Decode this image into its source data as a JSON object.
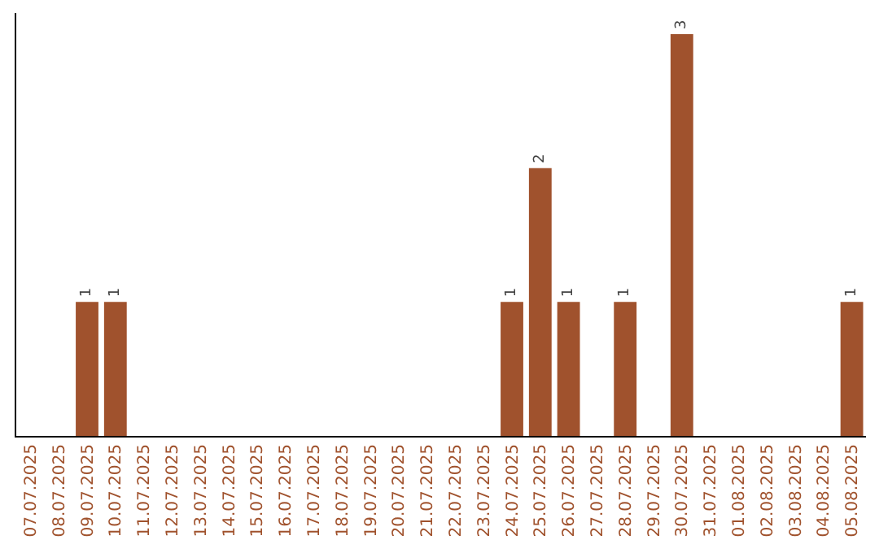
{
  "chart_data": {
    "type": "bar",
    "categories": [
      "07.07.2025",
      "08.07.2025",
      "09.07.2025",
      "10.07.2025",
      "11.07.2025",
      "12.07.2025",
      "13.07.2025",
      "14.07.2025",
      "15.07.2025",
      "16.07.2025",
      "17.07.2025",
      "18.07.2025",
      "19.07.2025",
      "20.07.2025",
      "21.07.2025",
      "22.07.2025",
      "23.07.2025",
      "24.07.2025",
      "25.07.2025",
      "26.07.2025",
      "27.07.2025",
      "28.07.2025",
      "29.07.2025",
      "30.07.2025",
      "31.07.2025",
      "01.08.2025",
      "02.08.2025",
      "03.08.2025",
      "04.08.2025",
      "05.08.2025"
    ],
    "values": [
      0,
      0,
      1,
      1,
      0,
      0,
      0,
      0,
      0,
      0,
      0,
      0,
      0,
      0,
      0,
      0,
      0,
      1,
      2,
      1,
      0,
      1,
      0,
      3,
      0,
      0,
      0,
      0,
      0,
      1
    ],
    "value_labels": [
      null,
      null,
      "1",
      "1",
      null,
      null,
      null,
      null,
      null,
      null,
      null,
      null,
      null,
      null,
      null,
      null,
      null,
      "1",
      "2",
      "1",
      null,
      "1",
      null,
      "3",
      null,
      null,
      null,
      null,
      null,
      "1"
    ],
    "color": "#a0522d",
    "grid": false,
    "legend": false,
    "tick_labels": "x"
  }
}
